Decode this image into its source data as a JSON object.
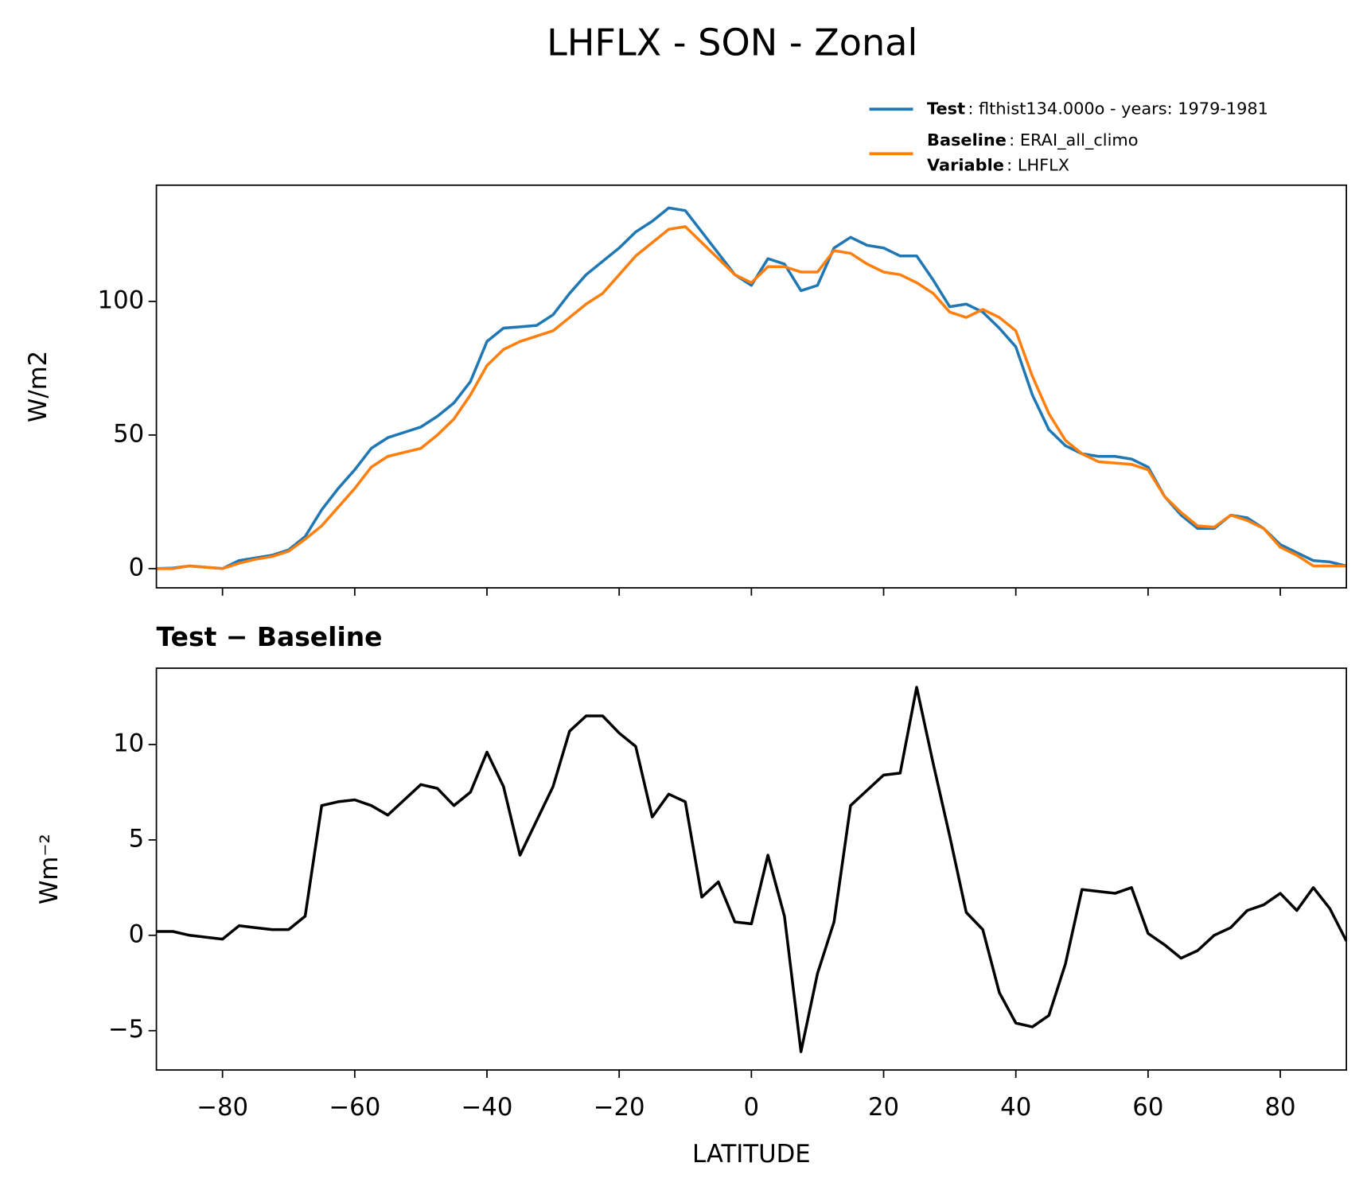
{
  "chart_data": [
    {
      "type": "line",
      "title": "LHFLX - SON - Zonal",
      "ylabel": "W/m2",
      "x": [
        -90,
        -87.5,
        -85,
        -82.5,
        -80,
        -77.5,
        -75,
        -72.5,
        -70,
        -67.5,
        -65,
        -62.5,
        -60,
        -57.5,
        -55,
        -52.5,
        -50,
        -47.5,
        -45,
        -42.5,
        -40,
        -37.5,
        -35,
        -32.5,
        -30,
        -27.5,
        -25,
        -22.5,
        -20,
        -17.5,
        -15,
        -12.5,
        -10,
        -7.5,
        -5,
        -2.5,
        0,
        2.5,
        5,
        7.5,
        10,
        12.5,
        15,
        17.5,
        20,
        22.5,
        25,
        27.5,
        30,
        32.5,
        35,
        37.5,
        40,
        42.5,
        45,
        47.5,
        50,
        52.5,
        55,
        57.5,
        60,
        62.5,
        65,
        67.5,
        70,
        72.5,
        75,
        77.5,
        80,
        82.5,
        85,
        87.5,
        90
      ],
      "series": [
        {
          "name": "Test",
          "label": ": flthist134.000o - years: 1979-1981",
          "color": "#1f77b4",
          "values": [
            0,
            0.2,
            1,
            0.5,
            0,
            3,
            4,
            5,
            7,
            12,
            22,
            30,
            37,
            45,
            49,
            51,
            53,
            57,
            62,
            70,
            85,
            90,
            90.5,
            91,
            95,
            103,
            110,
            115,
            120,
            126,
            130,
            135,
            134,
            126,
            118,
            110,
            106,
            116,
            114,
            104,
            106,
            120,
            124,
            121,
            120,
            117,
            117,
            108,
            98,
            99,
            96,
            90,
            83,
            65,
            52,
            46,
            43,
            42,
            42,
            41,
            38,
            27,
            20,
            15,
            15,
            20,
            19,
            15,
            9,
            6,
            3,
            2.5,
            1
          ]
        },
        {
          "name": "Baseline",
          "label": ": ERAI_all_climo",
          "color": "#ff7f0e",
          "values": [
            0,
            0,
            1,
            0.5,
            0,
            2,
            3.5,
            4.5,
            6.5,
            11,
            16,
            23,
            30,
            38,
            42,
            43.5,
            45,
            50,
            56,
            65,
            76,
            82,
            85,
            87,
            89,
            94,
            99,
            103,
            110,
            117,
            122,
            127,
            128,
            122,
            116,
            110,
            107,
            113,
            113,
            111,
            111,
            119,
            118,
            114,
            111,
            110,
            107,
            103,
            96,
            94,
            97,
            94,
            89,
            72,
            58,
            48,
            43,
            40,
            39.5,
            39,
            37,
            27,
            21,
            16,
            15.5,
            20,
            18,
            15,
            8,
            5,
            1,
            1,
            1
          ]
        }
      ],
      "legend_extra": {
        "name": "Variable",
        "label": ": LHFLX"
      },
      "xlim": [
        -90,
        90
      ],
      "xticks": [
        -80,
        -60,
        -40,
        -20,
        0,
        20,
        40,
        60,
        80
      ],
      "ylim": [
        -7.2,
        143.5
      ],
      "yticks": [
        0,
        50,
        100
      ]
    },
    {
      "type": "line",
      "title": "Test − Baseline",
      "xlabel": "LATITUDE",
      "ylabel": "Wm⁻²",
      "x": [
        -90,
        -87.5,
        -85,
        -82.5,
        -80,
        -77.5,
        -75,
        -72.5,
        -70,
        -67.5,
        -65,
        -62.5,
        -60,
        -57.5,
        -55,
        -52.5,
        -50,
        -47.5,
        -45,
        -42.5,
        -40,
        -37.5,
        -35,
        -32.5,
        -30,
        -27.5,
        -25,
        -22.5,
        -20,
        -17.5,
        -15,
        -12.5,
        -10,
        -7.5,
        -5,
        -2.5,
        0,
        2.5,
        5,
        7.5,
        10,
        12.5,
        15,
        17.5,
        20,
        22.5,
        25,
        27.5,
        30,
        32.5,
        35,
        37.5,
        40,
        42.5,
        45,
        47.5,
        50,
        52.5,
        55,
        57.5,
        60,
        62.5,
        65,
        67.5,
        70,
        72.5,
        75,
        77.5,
        80,
        82.5,
        85,
        87.5,
        90
      ],
      "series": [
        {
          "color": "#000000",
          "values": [
            0.2,
            0.2,
            0,
            -0.1,
            -0.2,
            0.5,
            0.4,
            0.3,
            0.3,
            1,
            6.8,
            7,
            7.1,
            6.8,
            6.3,
            7.1,
            7.9,
            7.7,
            6.8,
            7.5,
            9.6,
            7.8,
            4.2,
            6,
            7.8,
            10.7,
            11.5,
            11.5,
            10.6,
            9.9,
            6.2,
            7.4,
            7,
            2,
            2.8,
            0.7,
            0.6,
            4.2,
            1,
            -6.1,
            -2,
            0.7,
            6.8,
            7.6,
            8.4,
            8.5,
            13,
            9,
            5.2,
            1.2,
            0.3,
            -3,
            -4.6,
            -4.8,
            -4.2,
            -1.5,
            2.4,
            2.3,
            2.2,
            2.5,
            0.1,
            -0.5,
            -1.2,
            -0.8,
            0,
            0.4,
            1.3,
            1.6,
            2.2,
            1.3,
            2.5,
            1.4,
            -0.3
          ]
        }
      ],
      "xlim": [
        -90,
        90
      ],
      "xticks": [
        {
          "value": -80,
          "label": "−80"
        },
        {
          "value": -60,
          "label": "−60"
        },
        {
          "value": -40,
          "label": "−40"
        },
        {
          "value": -20,
          "label": "−20"
        },
        0,
        20,
        40,
        60,
        80
      ],
      "ylim": [
        -7.06,
        14.0
      ],
      "yticks": [
        {
          "value": -5,
          "label": "−5"
        },
        0,
        5,
        10
      ]
    }
  ]
}
